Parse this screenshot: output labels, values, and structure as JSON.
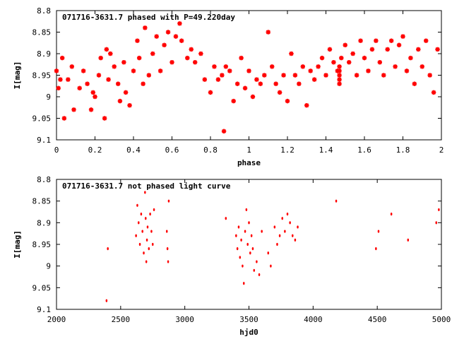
{
  "chart_data": [
    {
      "type": "scatter",
      "title": "071716-3631.7 phased with P=49.220day",
      "xlabel": "phase",
      "ylabel": "I[mag]",
      "xlim": [
        0,
        2
      ],
      "ylim": [
        9.1,
        8.8
      ],
      "y_inverted": true,
      "xticks": [
        0,
        0.2,
        0.4,
        0.6,
        0.8,
        1,
        1.2,
        1.4,
        1.6,
        1.8,
        2
      ],
      "xtick_labels": [
        "0",
        "0.2",
        "0.4",
        "0.6",
        "0.8",
        "1",
        "1.2",
        "1.4",
        "1.6",
        "1.8",
        "2"
      ],
      "yticks": [
        8.8,
        8.85,
        8.9,
        8.95,
        9,
        9.05,
        9.1
      ],
      "ytick_labels": [
        "8.8",
        "8.85",
        "8.9",
        "8.95",
        "9",
        "9.05",
        "9.1"
      ],
      "grid": false,
      "marker_color": "#ff0000",
      "series": [
        {
          "points": [
            [
              0.0,
              8.94
            ],
            [
              0.01,
              8.98
            ],
            [
              0.02,
              8.96
            ],
            [
              0.03,
              8.91
            ],
            [
              0.04,
              9.05
            ],
            [
              0.06,
              8.96
            ],
            [
              0.08,
              8.93
            ],
            [
              0.09,
              9.03
            ],
            [
              0.12,
              8.98
            ],
            [
              0.14,
              8.94
            ],
            [
              0.16,
              8.97
            ],
            [
              0.18,
              9.03
            ],
            [
              0.19,
              8.99
            ],
            [
              0.2,
              9.0
            ],
            [
              0.22,
              8.95
            ],
            [
              0.23,
              8.91
            ],
            [
              0.25,
              9.05
            ],
            [
              0.26,
              8.89
            ],
            [
              0.27,
              8.96
            ],
            [
              0.28,
              8.9
            ],
            [
              0.3,
              8.93
            ],
            [
              0.32,
              8.97
            ],
            [
              0.33,
              9.01
            ],
            [
              0.35,
              8.92
            ],
            [
              0.36,
              8.99
            ],
            [
              0.38,
              9.02
            ],
            [
              0.4,
              8.94
            ],
            [
              0.42,
              8.87
            ],
            [
              0.43,
              8.91
            ],
            [
              0.45,
              8.97
            ],
            [
              0.46,
              8.84
            ],
            [
              0.48,
              8.95
            ],
            [
              0.5,
              8.9
            ],
            [
              0.52,
              8.86
            ],
            [
              0.54,
              8.94
            ],
            [
              0.56,
              8.88
            ],
            [
              0.58,
              8.85
            ],
            [
              0.6,
              8.92
            ],
            [
              0.62,
              8.86
            ],
            [
              0.64,
              8.83
            ],
            [
              0.65,
              8.87
            ],
            [
              0.68,
              8.91
            ],
            [
              0.7,
              8.89
            ],
            [
              0.72,
              8.92
            ],
            [
              0.75,
              8.9
            ],
            [
              0.77,
              8.96
            ],
            [
              0.8,
              8.99
            ],
            [
              0.82,
              8.93
            ],
            [
              0.84,
              8.96
            ],
            [
              0.86,
              8.95
            ],
            [
              0.87,
              9.08
            ],
            [
              0.88,
              8.93
            ],
            [
              0.9,
              8.94
            ],
            [
              0.92,
              9.01
            ],
            [
              0.94,
              8.97
            ],
            [
              0.96,
              8.91
            ],
            [
              0.98,
              8.98
            ],
            [
              1.0,
              8.94
            ],
            [
              1.02,
              9.0
            ],
            [
              1.04,
              8.96
            ],
            [
              1.06,
              8.97
            ],
            [
              1.08,
              8.95
            ],
            [
              1.1,
              8.85
            ],
            [
              1.12,
              8.93
            ],
            [
              1.14,
              8.97
            ],
            [
              1.16,
              8.99
            ],
            [
              1.18,
              8.95
            ],
            [
              1.2,
              9.01
            ],
            [
              1.22,
              8.9
            ],
            [
              1.24,
              8.95
            ],
            [
              1.26,
              8.97
            ],
            [
              1.28,
              8.93
            ],
            [
              1.3,
              9.02
            ],
            [
              1.32,
              8.94
            ],
            [
              1.34,
              8.96
            ],
            [
              1.36,
              8.93
            ],
            [
              1.38,
              8.91
            ],
            [
              1.4,
              8.95
            ],
            [
              1.42,
              8.89
            ],
            [
              1.44,
              8.92
            ],
            [
              1.46,
              8.94
            ],
            [
              1.47,
              8.93
            ],
            [
              1.47,
              8.94
            ],
            [
              1.47,
              8.95
            ],
            [
              1.47,
              8.96
            ],
            [
              1.47,
              8.97
            ],
            [
              1.48,
              8.91
            ],
            [
              1.5,
              8.88
            ],
            [
              1.52,
              8.92
            ],
            [
              1.54,
              8.9
            ],
            [
              1.56,
              8.95
            ],
            [
              1.58,
              8.87
            ],
            [
              1.6,
              8.91
            ],
            [
              1.62,
              8.94
            ],
            [
              1.64,
              8.89
            ],
            [
              1.66,
              8.87
            ],
            [
              1.68,
              8.92
            ],
            [
              1.7,
              8.95
            ],
            [
              1.72,
              8.89
            ],
            [
              1.74,
              8.87
            ],
            [
              1.76,
              8.93
            ],
            [
              1.78,
              8.88
            ],
            [
              1.8,
              8.86
            ],
            [
              1.82,
              8.94
            ],
            [
              1.84,
              8.91
            ],
            [
              1.86,
              8.97
            ],
            [
              1.88,
              8.89
            ],
            [
              1.9,
              8.93
            ],
            [
              1.92,
              8.87
            ],
            [
              1.94,
              8.95
            ],
            [
              1.96,
              8.99
            ],
            [
              1.98,
              8.89
            ]
          ]
        }
      ]
    },
    {
      "type": "scatter",
      "title": "071716-3631.7 not phased light curve",
      "xlabel": "hjd0",
      "ylabel": "I[mag]",
      "xlim": [
        2000,
        5000
      ],
      "ylim": [
        9.1,
        8.8
      ],
      "y_inverted": true,
      "xticks": [
        2000,
        2500,
        3000,
        3500,
        4000,
        4500,
        5000
      ],
      "xtick_labels": [
        "2000",
        "2500",
        "3000",
        "3500",
        "4000",
        "4500",
        "5000"
      ],
      "yticks": [
        8.8,
        8.85,
        8.9,
        8.95,
        9,
        9.05,
        9.1
      ],
      "ytick_labels": [
        "8.8",
        "8.85",
        "8.9",
        "8.95",
        "9",
        "9.05",
        "9.1"
      ],
      "grid": false,
      "marker_color": "#ff0000",
      "series": [
        {
          "points": [
            [
              2390,
              9.08
            ],
            [
              2400,
              8.96
            ],
            [
              2620,
              8.93
            ],
            [
              2630,
              8.86
            ],
            [
              2640,
              8.9
            ],
            [
              2650,
              8.95
            ],
            [
              2660,
              8.88
            ],
            [
              2670,
              8.92
            ],
            [
              2680,
              8.97
            ],
            [
              2690,
              8.83
            ],
            [
              2695,
              8.89
            ],
            [
              2700,
              8.99
            ],
            [
              2705,
              8.94
            ],
            [
              2710,
              8.91
            ],
            [
              2720,
              8.96
            ],
            [
              2730,
              8.88
            ],
            [
              2740,
              8.92
            ],
            [
              2750,
              8.95
            ],
            [
              2760,
              8.87
            ],
            [
              2860,
              8.92
            ],
            [
              2865,
              8.96
            ],
            [
              2870,
              8.99
            ],
            [
              2875,
              8.85
            ],
            [
              3320,
              8.89
            ],
            [
              3400,
              8.93
            ],
            [
              3410,
              8.96
            ],
            [
              3420,
              8.91
            ],
            [
              3430,
              8.98
            ],
            [
              3440,
              8.94
            ],
            [
              3450,
              9.0
            ],
            [
              3460,
              9.04
            ],
            [
              3470,
              8.92
            ],
            [
              3480,
              8.87
            ],
            [
              3490,
              8.95
            ],
            [
              3500,
              8.9
            ],
            [
              3510,
              8.97
            ],
            [
              3520,
              8.93
            ],
            [
              3530,
              8.96
            ],
            [
              3540,
              9.01
            ],
            [
              3560,
              8.99
            ],
            [
              3580,
              9.02
            ],
            [
              3600,
              8.92
            ],
            [
              3650,
              8.97
            ],
            [
              3670,
              9.0
            ],
            [
              3700,
              8.91
            ],
            [
              3720,
              8.95
            ],
            [
              3740,
              8.93
            ],
            [
              3760,
              8.89
            ],
            [
              3780,
              8.92
            ],
            [
              3800,
              8.88
            ],
            [
              3820,
              8.9
            ],
            [
              3840,
              8.93
            ],
            [
              3860,
              8.94
            ],
            [
              3880,
              8.91
            ],
            [
              4180,
              8.85
            ],
            [
              4490,
              8.96
            ],
            [
              4510,
              8.92
            ],
            [
              4610,
              8.88
            ],
            [
              4740,
              8.94
            ],
            [
              4960,
              8.9
            ],
            [
              4980,
              8.87
            ]
          ]
        }
      ]
    }
  ]
}
